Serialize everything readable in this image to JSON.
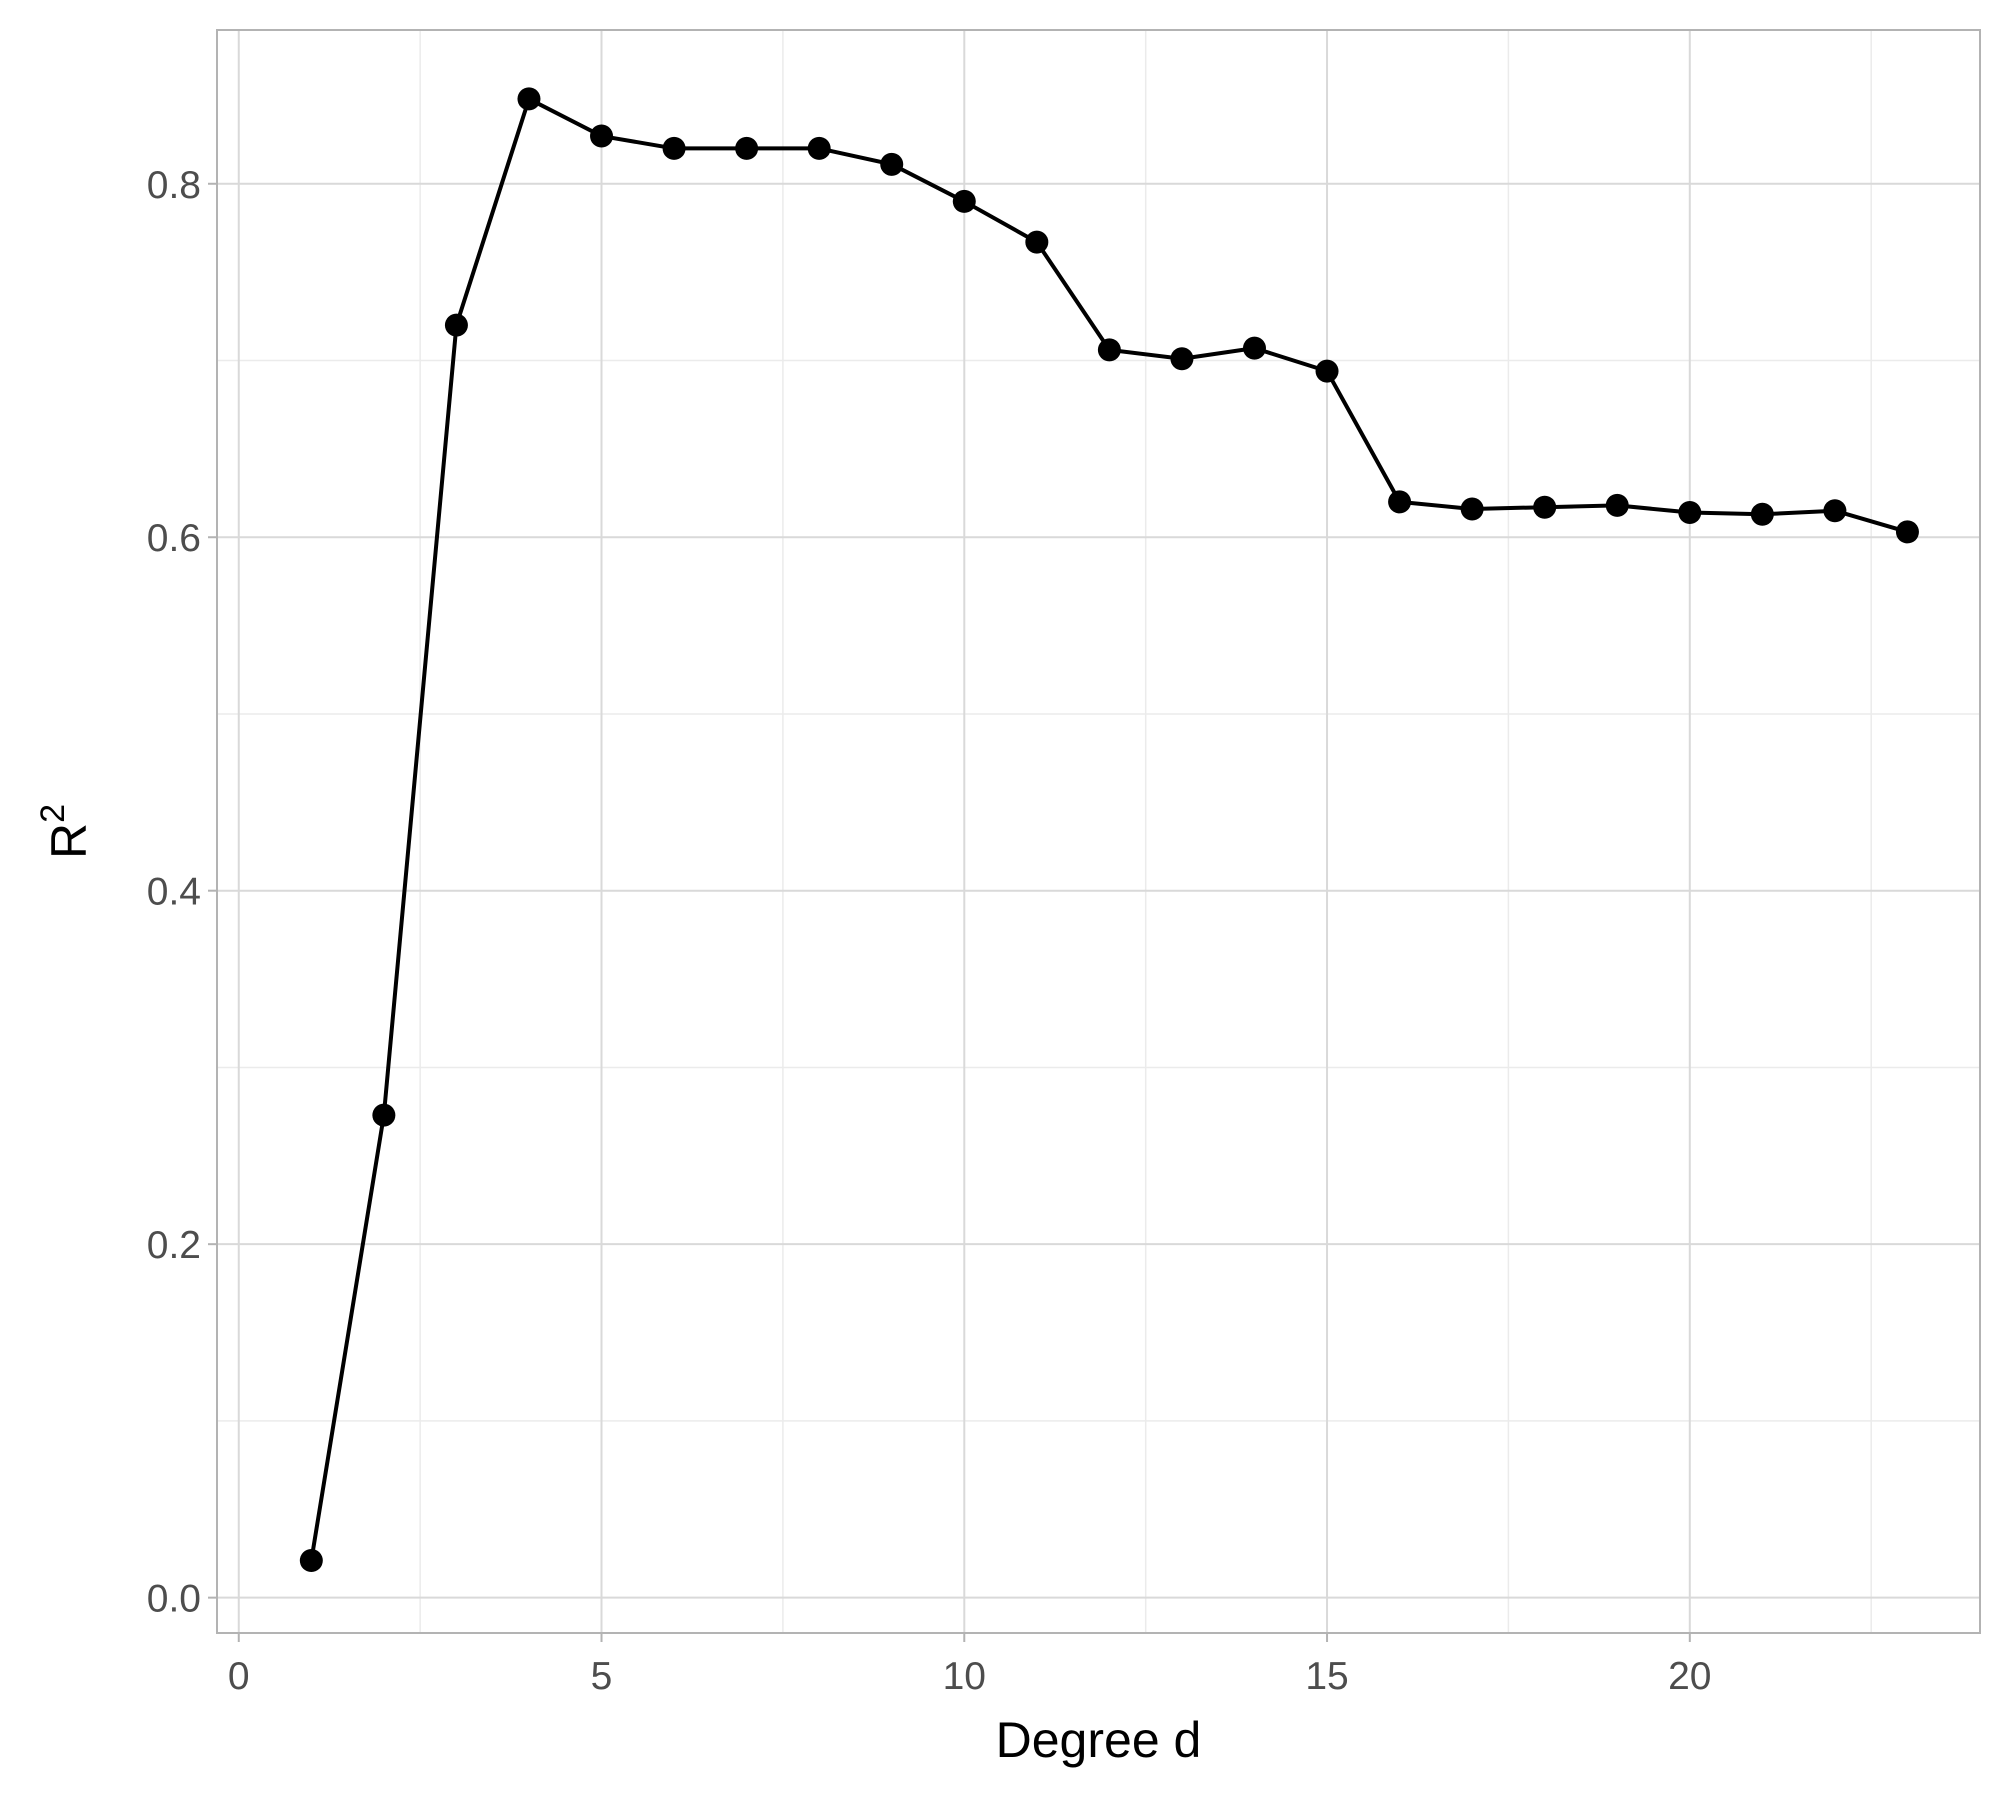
{
  "chart_data": {
    "type": "line",
    "title": "",
    "xlabel": "Degree d",
    "ylabel": "R",
    "ylabel_superscript": "2",
    "xlim": [
      -0.3,
      24
    ],
    "ylim": [
      -0.02,
      0.887
    ],
    "x_ticks": [
      0,
      5,
      10,
      15,
      20
    ],
    "x_tick_labels": [
      "0",
      "5",
      "10",
      "15",
      "20"
    ],
    "x_minor_ticks": [
      2.5,
      7.5,
      12.5,
      17.5,
      22.5
    ],
    "y_ticks": [
      0.0,
      0.2,
      0.4,
      0.6,
      0.8
    ],
    "y_tick_labels": [
      "0.0",
      "0.2",
      "0.4",
      "0.6",
      "0.8"
    ],
    "y_minor_ticks": [
      0.1,
      0.3,
      0.5,
      0.7
    ],
    "grid": true,
    "legend": "none",
    "colors": {
      "line": "#000000",
      "point": "#000000",
      "grid_major": "#d9d9d9",
      "grid_minor": "#ebebeb",
      "panel_border": "#b3b3b3",
      "tick_label": "#4d4d4d",
      "axis_title": "#000000"
    },
    "series": [
      {
        "x": [
          1,
          2,
          3,
          4,
          5,
          6,
          7,
          8,
          9,
          10,
          11,
          12,
          13,
          14,
          15,
          16,
          17,
          18,
          19,
          20,
          21,
          22,
          23
        ],
        "y": [
          0.021,
          0.273,
          0.72,
          0.848,
          0.827,
          0.82,
          0.82,
          0.82,
          0.811,
          0.79,
          0.767,
          0.706,
          0.701,
          0.707,
          0.694,
          0.62,
          0.616,
          0.617,
          0.618,
          0.614,
          0.613,
          0.615,
          0.603
        ]
      }
    ]
  }
}
